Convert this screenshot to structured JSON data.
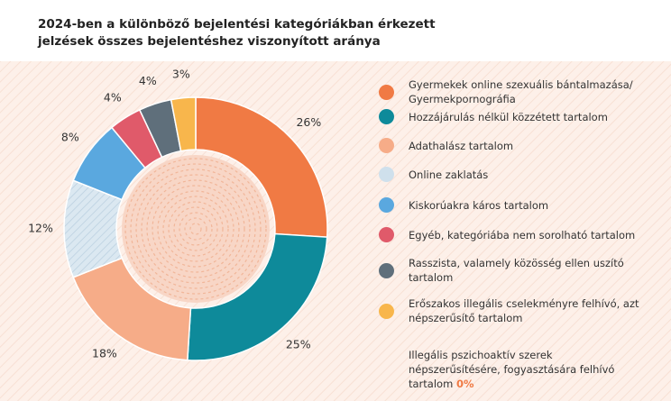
{
  "chart_data": {
    "type": "donut",
    "title": "2024-ben a különböző bejelentési kategóriákban érkezett jelzések összes bejelentéshez viszonyított aránya",
    "categories": [
      "Gyermekek online szexuális bántalmazása/ Gyermekpornográfia",
      "Hozzájárulás nélkül közzétett tartalom",
      "Adathalász tartalom",
      "Online zaklatás",
      "Kiskorúakra káros tartalom",
      "Egyéb, kategóriába nem sorolható tartalom",
      "Rasszista, valamely közösség ellen uszító tartalom",
      "Erőszakos illegális cselekményre felhívó, azt népszerűsítő tartalom",
      "Illegális pszichoaktív szerek népszerűsítésére, fogyasztására felhívó tartalom"
    ],
    "values": [
      26,
      25,
      18,
      12,
      8,
      4,
      4,
      3,
      0
    ],
    "value_labels": [
      "26%",
      "25%",
      "18%",
      "12%",
      "8%",
      "4%",
      "4%",
      "3%",
      "0%"
    ],
    "colors": [
      "#f07a44",
      "#0e8a9a",
      "#f6ac88",
      "#cfe0ec",
      "#5aa8df",
      "#e05a6a",
      "#5f6f7b",
      "#f8b64c",
      null
    ]
  }
}
